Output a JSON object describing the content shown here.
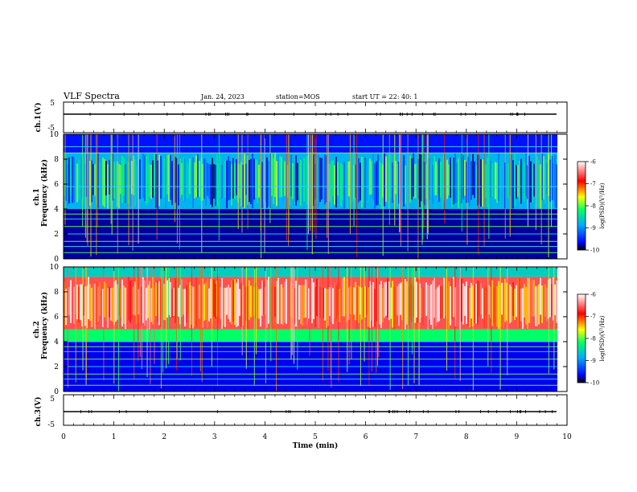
{
  "header": {
    "title": "VLF Spectra",
    "date": "Jan. 24, 2023",
    "station": "station=MOS",
    "start_time": "start  UT =  22: 40: 1"
  },
  "chart_data": {
    "type": "heatmap",
    "x_axis": {
      "label": "Time  (min)",
      "range": [
        0,
        10
      ],
      "ticks": [
        "0",
        "1",
        "2",
        "3",
        "4",
        "5",
        "6",
        "7",
        "8",
        "9",
        "10"
      ]
    },
    "panels": [
      {
        "name": "ch1-waveform",
        "type": "line",
        "ylabel": "ch.1(V)",
        "ylim": [
          -5,
          5
        ],
        "yticks": [
          "5",
          "-5"
        ],
        "value": 0
      },
      {
        "name": "ch1-spectrogram",
        "type": "heatmap",
        "ylabel_line1": "ch.1",
        "ylabel_line2": "Frequency  (kHz)",
        "ylim": [
          0,
          10
        ],
        "yticks": [
          "0",
          "2",
          "4",
          "6",
          "8",
          "10"
        ],
        "colorbar": {
          "label": "log(PSD)(V²/Hz)",
          "range": [
            -10,
            -6
          ],
          "ticks": [
            "-6",
            "-7",
            "-8",
            "-9",
            "-10"
          ]
        },
        "bands": [
          {
            "f_min": 8.5,
            "f_max": 10,
            "level": -9.6
          },
          {
            "f_min": 4,
            "f_max": 8.5,
            "level": -8.8
          },
          {
            "f_min": 0,
            "f_max": 4,
            "level": -9.8
          }
        ],
        "lines_khz": [
          0.5,
          1.0,
          1.4,
          2.0,
          2.6,
          3.2,
          3.6,
          5.8,
          8.5,
          9.0
        ]
      },
      {
        "name": "ch2-spectrogram",
        "type": "heatmap",
        "ylabel_line1": "ch.2",
        "ylabel_line2": "Frequency  (kHz)",
        "ylim": [
          0,
          10
        ],
        "yticks": [
          "0",
          "2",
          "4",
          "6",
          "8",
          "10"
        ],
        "colorbar": {
          "label": "log(PSD)(V²/Hz)",
          "range": [
            -10,
            -6
          ],
          "ticks": [
            "-6",
            "-7",
            "-8",
            "-9",
            "-10"
          ]
        },
        "bands": [
          {
            "f_min": 9.2,
            "f_max": 10,
            "level": -8.6
          },
          {
            "f_min": 5,
            "f_max": 9.2,
            "level": -6.6
          },
          {
            "f_min": 4,
            "f_max": 5,
            "level": -8.2
          },
          {
            "f_min": 0,
            "f_max": 4,
            "level": -9.7
          }
        ],
        "lines_khz": [
          0.5,
          1.0,
          1.4,
          2.0,
          2.6,
          3.2,
          3.6,
          4.0
        ]
      },
      {
        "name": "ch3-waveform",
        "type": "line",
        "ylabel": "ch.3(V)",
        "ylim": [
          -5,
          5
        ],
        "yticks": [
          "5",
          "-5"
        ],
        "value": 0
      }
    ]
  }
}
